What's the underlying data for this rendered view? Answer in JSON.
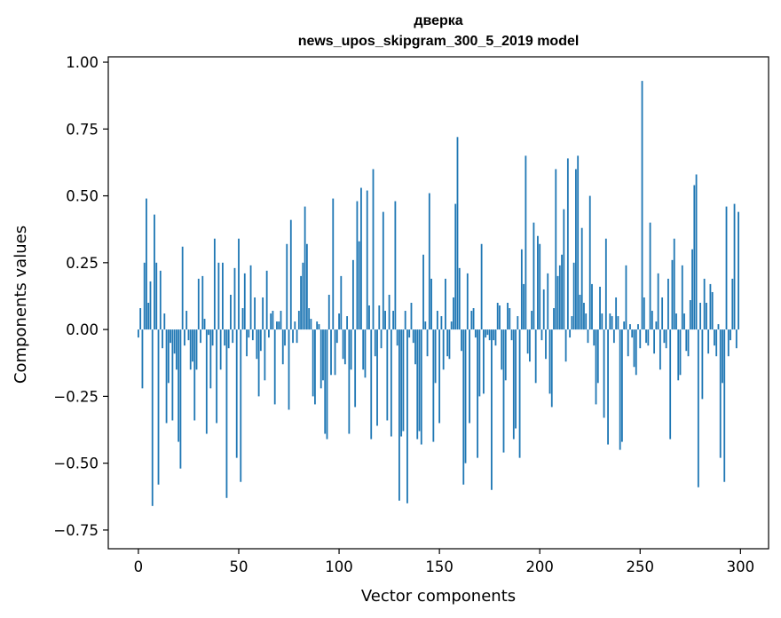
{
  "chart_data": {
    "type": "bar",
    "title": "дверка",
    "subtitle": "news_upos_skipgram_300_5_2019 model",
    "xlabel": "Vector components",
    "ylabel": "Components values",
    "xlim": [
      -15,
      314
    ],
    "ylim": [
      -0.82,
      1.02
    ],
    "xticks": [
      0,
      50,
      100,
      150,
      200,
      250,
      300
    ],
    "yticks": [
      -0.75,
      -0.5,
      -0.25,
      0.0,
      0.25,
      0.5,
      0.75,
      1.0
    ],
    "xtick_labels": [
      "0",
      "50",
      "100",
      "150",
      "200",
      "250",
      "300"
    ],
    "ytick_labels": [
      "−0.75",
      "−0.50",
      "−0.25",
      "0.00",
      "0.25",
      "0.50",
      "0.75",
      "1.00"
    ],
    "bar_color": "#1f77b4",
    "grid": false,
    "x": [
      0,
      1,
      2,
      3,
      4,
      5,
      6,
      7,
      8,
      9,
      10,
      11,
      12,
      13,
      14,
      15,
      16,
      17,
      18,
      19,
      20,
      21,
      22,
      23,
      24,
      25,
      26,
      27,
      28,
      29,
      30,
      31,
      32,
      33,
      34,
      35,
      36,
      37,
      38,
      39,
      40,
      41,
      42,
      43,
      44,
      45,
      46,
      47,
      48,
      49,
      50,
      51,
      52,
      53,
      54,
      55,
      56,
      57,
      58,
      59,
      60,
      61,
      62,
      63,
      64,
      65,
      66,
      67,
      68,
      69,
      70,
      71,
      72,
      73,
      74,
      75,
      76,
      77,
      78,
      79,
      80,
      81,
      82,
      83,
      84,
      85,
      86,
      87,
      88,
      89,
      90,
      91,
      92,
      93,
      94,
      95,
      96,
      97,
      98,
      99,
      100,
      101,
      102,
      103,
      104,
      105,
      106,
      107,
      108,
      109,
      110,
      111,
      112,
      113,
      114,
      115,
      116,
      117,
      118,
      119,
      120,
      121,
      122,
      123,
      124,
      125,
      126,
      127,
      128,
      129,
      130,
      131,
      132,
      133,
      134,
      135,
      136,
      137,
      138,
      139,
      140,
      141,
      142,
      143,
      144,
      145,
      146,
      147,
      148,
      149,
      150,
      151,
      152,
      153,
      154,
      155,
      156,
      157,
      158,
      159,
      160,
      161,
      162,
      163,
      164,
      165,
      166,
      167,
      168,
      169,
      170,
      171,
      172,
      173,
      174,
      175,
      176,
      177,
      178,
      179,
      180,
      181,
      182,
      183,
      184,
      185,
      186,
      187,
      188,
      189,
      190,
      191,
      192,
      193,
      194,
      195,
      196,
      197,
      198,
      199,
      200,
      201,
      202,
      203,
      204,
      205,
      206,
      207,
      208,
      209,
      210,
      211,
      212,
      213,
      214,
      215,
      216,
      217,
      218,
      219,
      220,
      221,
      222,
      223,
      224,
      225,
      226,
      227,
      228,
      229,
      230,
      231,
      232,
      233,
      234,
      235,
      236,
      237,
      238,
      239,
      240,
      241,
      242,
      243,
      244,
      245,
      246,
      247,
      248,
      249,
      250,
      251,
      252,
      253,
      254,
      255,
      256,
      257,
      258,
      259,
      260,
      261,
      262,
      263,
      264,
      265,
      266,
      267,
      268,
      269,
      270,
      271,
      272,
      273,
      274,
      275,
      276,
      277,
      278,
      279,
      280,
      281,
      282,
      283,
      284,
      285,
      286,
      287,
      288,
      289,
      290,
      291,
      292,
      293,
      294,
      295,
      296,
      297,
      298,
      299
    ],
    "values": [
      -0.03,
      0.08,
      -0.22,
      0.25,
      0.49,
      0.1,
      0.18,
      -0.66,
      0.43,
      0.25,
      -0.58,
      0.22,
      -0.07,
      0.06,
      -0.35,
      -0.2,
      -0.05,
      -0.34,
      -0.09,
      -0.15,
      -0.42,
      -0.52,
      0.31,
      -0.06,
      0.07,
      -0.04,
      -0.15,
      -0.12,
      -0.34,
      -0.15,
      0.19,
      -0.05,
      0.2,
      0.04,
      -0.39,
      -0.02,
      -0.22,
      -0.06,
      0.34,
      -0.35,
      0.25,
      -0.15,
      0.25,
      -0.06,
      -0.63,
      -0.07,
      0.13,
      -0.05,
      0.23,
      -0.48,
      0.34,
      -0.57,
      0.08,
      0.21,
      -0.1,
      -0.03,
      0.24,
      -0.04,
      0.12,
      -0.11,
      -0.25,
      -0.08,
      0.12,
      -0.19,
      0.22,
      -0.03,
      0.06,
      0.07,
      -0.28,
      0.03,
      0.03,
      0.07,
      -0.13,
      -0.06,
      0.32,
      -0.3,
      0.41,
      -0.05,
      0.03,
      -0.05,
      0.07,
      0.2,
      0.25,
      0.46,
      0.32,
      0.08,
      0.04,
      -0.25,
      -0.28,
      0.03,
      0.02,
      -0.22,
      -0.19,
      -0.39,
      -0.41,
      0.13,
      -0.17,
      0.49,
      -0.17,
      -0.05,
      0.06,
      0.2,
      -0.11,
      -0.13,
      0.05,
      -0.39,
      -0.15,
      0.26,
      -0.29,
      0.48,
      0.33,
      0.53,
      -0.15,
      -0.18,
      0.52,
      0.09,
      -0.41,
      0.6,
      -0.1,
      -0.36,
      0.09,
      -0.07,
      0.44,
      0.07,
      -0.34,
      0.13,
      -0.4,
      0.07,
      0.48,
      -0.06,
      -0.64,
      -0.4,
      -0.38,
      0.07,
      -0.65,
      -0.03,
      0.1,
      -0.05,
      -0.13,
      -0.41,
      -0.38,
      -0.43,
      0.28,
      0.03,
      -0.1,
      0.51,
      0.19,
      -0.42,
      -0.2,
      0.07,
      -0.35,
      0.05,
      -0.15,
      0.19,
      -0.1,
      -0.11,
      0.03,
      0.12,
      0.47,
      0.72,
      0.23,
      -0.08,
      -0.58,
      -0.5,
      0.21,
      -0.35,
      0.07,
      0.08,
      -0.03,
      -0.48,
      -0.25,
      0.32,
      -0.24,
      -0.03,
      -0.02,
      -0.04,
      -0.6,
      -0.04,
      -0.06,
      0.1,
      0.09,
      -0.15,
      -0.46,
      -0.19,
      0.1,
      0.08,
      -0.04,
      -0.41,
      -0.37,
      0.05,
      -0.48,
      0.3,
      0.17,
      0.65,
      -0.09,
      -0.12,
      0.07,
      0.4,
      -0.2,
      0.35,
      0.32,
      -0.04,
      0.15,
      -0.11,
      0.21,
      -0.24,
      -0.29,
      0.08,
      0.6,
      0.2,
      0.24,
      0.28,
      0.45,
      -0.12,
      0.64,
      -0.03,
      0.05,
      0.25,
      0.6,
      0.65,
      0.13,
      0.38,
      0.1,
      0.06,
      -0.05,
      0.5,
      0.17,
      -0.06,
      -0.28,
      -0.2,
      0.16,
      0.06,
      -0.33,
      0.34,
      -0.43,
      0.06,
      0.05,
      -0.05,
      0.12,
      0.05,
      -0.45,
      -0.42,
      0.03,
      0.24,
      -0.1,
      0.02,
      -0.03,
      -0.14,
      -0.17,
      0.02,
      -0.07,
      0.93,
      0.12,
      -0.05,
      -0.06,
      0.4,
      0.07,
      -0.09,
      0.03,
      0.21,
      -0.15,
      0.12,
      -0.05,
      -0.07,
      0.19,
      -0.41,
      0.26,
      0.34,
      0.06,
      -0.19,
      -0.17,
      0.24,
      0.06,
      -0.08,
      -0.1,
      0.11,
      0.3,
      0.54,
      0.58,
      -0.59,
      0.1,
      -0.26,
      0.19,
      0.1,
      -0.09,
      0.17,
      0.14,
      -0.06,
      -0.1,
      0.02,
      -0.48,
      -0.2,
      -0.57,
      0.46,
      -0.1,
      -0.04,
      0.19,
      0.47,
      -0.07,
      0.44
    ]
  }
}
